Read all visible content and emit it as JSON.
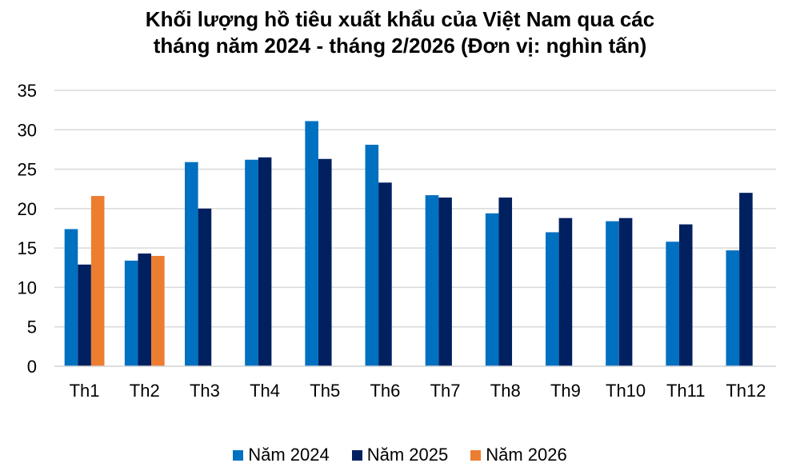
{
  "chart_data": {
    "type": "bar",
    "title_line1": "Khối lượng hồ tiêu xuất khẩu của Việt Nam qua các",
    "title_line2": "tháng năm 2024 - tháng 2/2026 (Đơn vị: nghìn tấn)",
    "xlabel": "",
    "ylabel": "",
    "ylim": [
      0,
      35
    ],
    "yticks": [
      0,
      5,
      10,
      15,
      20,
      25,
      30,
      35
    ],
    "grid": true,
    "legend_position": "bottom",
    "categories": [
      "Th1",
      "Th2",
      "Th3",
      "Th4",
      "Th5",
      "Th6",
      "Th7",
      "Th8",
      "Th9",
      "Th10",
      "Th11",
      "Th12"
    ],
    "series": [
      {
        "name": "Năm 2024",
        "color": "#0070C0",
        "values": [
          17.4,
          13.4,
          25.9,
          26.2,
          31.1,
          28.1,
          21.7,
          19.4,
          17.0,
          18.4,
          15.8,
          14.7
        ]
      },
      {
        "name": "Năm 2025",
        "color": "#002060",
        "values": [
          12.9,
          14.3,
          20.0,
          26.5,
          26.3,
          23.3,
          21.4,
          21.4,
          18.8,
          18.8,
          18.0,
          22.0
        ]
      },
      {
        "name": "Năm 2026",
        "color": "#ED7D31",
        "values": [
          21.6,
          14.0,
          null,
          null,
          null,
          null,
          null,
          null,
          null,
          null,
          null,
          null
        ]
      }
    ]
  }
}
